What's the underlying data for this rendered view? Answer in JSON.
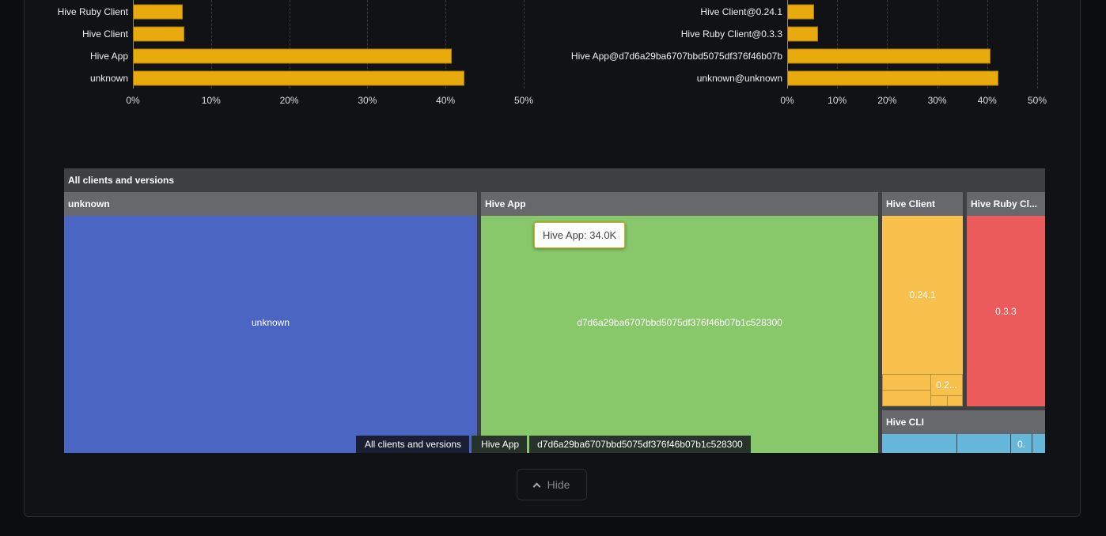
{
  "chart_data": [
    {
      "type": "bar",
      "orientation": "horizontal",
      "categories": [
        "Hive Ruby Client",
        "Hive Client",
        "Hive App",
        "unknown"
      ],
      "values": [
        6.4,
        6.6,
        40.8,
        42.4
      ],
      "xlim": [
        0,
        50
      ],
      "xticks": [
        "0%",
        "10%",
        "20%",
        "30%",
        "40%",
        "50%"
      ],
      "grid": true,
      "color": "#e8aa0c"
    },
    {
      "type": "bar",
      "orientation": "horizontal",
      "categories": [
        "Hive Client@0.24.1",
        "Hive Ruby Client@0.3.3",
        "Hive App@d7d6a29ba6707bbd5075df376f46b07b",
        "unknown@unknown"
      ],
      "values": [
        5.4,
        6.2,
        40.7,
        42.2
      ],
      "xlim": [
        0,
        50
      ],
      "xticks": [
        "0%",
        "10%",
        "20%",
        "30%",
        "40%",
        "50%"
      ],
      "grid": true,
      "color": "#e8aa0c"
    }
  ],
  "treemap": {
    "root": "All clients and versions",
    "groups": [
      {
        "name": "unknown",
        "color": "#4a66c2",
        "children": [
          "unknown"
        ]
      },
      {
        "name": "Hive App",
        "color": "#88c76a",
        "children": [
          "d7d6a29ba6707bbd5075df376f46b07b1c528300"
        ]
      },
      {
        "name": "Hive Client",
        "color": "#f8c14e",
        "children": [
          "0.24.1",
          "0.2..."
        ]
      },
      {
        "name": "Hive Ruby Cl...",
        "color": "#eb5b5b",
        "children": [
          "0.3.3"
        ]
      },
      {
        "name": "Hive CLI",
        "color": "#66b7d9",
        "children": [
          "0."
        ]
      }
    ],
    "tooltip": "Hive App: 34.0K",
    "breadcrumb": [
      "All clients and versions",
      "Hive App",
      "d7d6a29ba6707bbd5075df376f46b07b1c528300"
    ]
  },
  "hide_button": "Hide"
}
